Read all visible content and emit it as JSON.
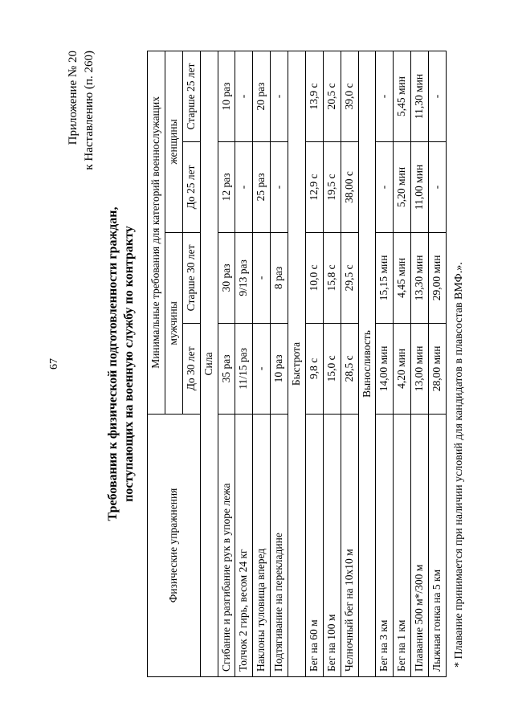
{
  "page_number": "67",
  "appendix_line1": "Приложение № 20",
  "appendix_line2": "к Наставлению (п. 260)",
  "title_line1": "Требования к физической подготовленности граждан,",
  "title_line2": "поступающих на военную службу по контракту",
  "header": {
    "col_exercise": "Физические упражнения",
    "col_min": "Минимальные требования для категорий военнослужащих",
    "col_men": "мужчины",
    "col_women": "женщины",
    "m1": "До 30 лет",
    "m2": "Старше 30 лет",
    "w1": "До 25 лет",
    "w2": "Старше 25 лет"
  },
  "sections": {
    "strength": "Сила",
    "speed": "Быстрота",
    "endurance": "Выносливость"
  },
  "rows": {
    "r1": {
      "ex": "Сгибание и разгибание рук в упоре лежа",
      "m1": "35 раз",
      "m2": "30 раз",
      "w1": "12 раз",
      "w2": "10 раз"
    },
    "r2": {
      "ex": "Толчок 2 гирь, весом 24 кг",
      "m1": "11/15 раз",
      "m2": "9/13 раз",
      "w1": "-",
      "w2": "-"
    },
    "r3": {
      "ex": "Наклоны туловища вперед",
      "m1": "-",
      "m2": "-",
      "w1": "25 раз",
      "w2": "20 раз"
    },
    "r4": {
      "ex": "Подтягивание на перекладине",
      "m1": "10 раз",
      "m2": "8 раз",
      "w1": "-",
      "w2": "-"
    },
    "r5": {
      "ex": "Бег на 60 м",
      "m1": "9,8 с",
      "m2": "10,0 с",
      "w1": "12,9 с",
      "w2": "13,9 с"
    },
    "r6": {
      "ex": "Бег на 100 м",
      "m1": "15,0 с",
      "m2": "15,8 с",
      "w1": "19,5 с",
      "w2": "20,5 с"
    },
    "r7": {
      "ex": "Челночный бег на 10х10 м",
      "m1": "28,5 с",
      "m2": "29,5 с",
      "w1": "38,00 с",
      "w2": "39,0 с"
    },
    "r8": {
      "ex": "Бег на 3 км",
      "m1": "14,00 мин",
      "m2": "15,15 мин",
      "w1": "-",
      "w2": "-"
    },
    "r9": {
      "ex": "Бег на 1 км",
      "m1": "4,20 мин",
      "m2": "4,45 мин",
      "w1": "5,20 мин",
      "w2": "5,45 мин"
    },
    "r10": {
      "ex": "Плавание 500 м*/300 м",
      "m1": "13,00 мин",
      "m2": "13,30 мин",
      "w1": "11,00 мин",
      "w2": "11,30 мин"
    },
    "r11": {
      "ex": "Лыжная гонка на 5 км",
      "m1": "28,00 мин",
      "m2": "29,00 мин",
      "w1": "-",
      "w2": "-"
    }
  },
  "footnote": "* Плавание принимается при наличии условий для кандидатов в плавсостав ВМФ.»."
}
